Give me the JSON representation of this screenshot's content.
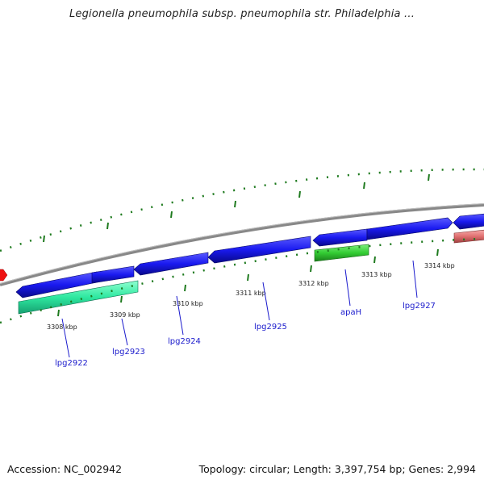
{
  "title": "Legionella pneumophila subsp. pneumophila str. Philadelphia ...",
  "footer": {
    "accession": "Accession: NC_002942",
    "summary": "Topology: circular; Length: 3,397,754 bp; Genes: 2,994"
  },
  "colors": {
    "backbone": "#8a8a8a",
    "cds": "#1a1af0",
    "cds_dark": "#0a0a9a",
    "rna_green": "#33cc33",
    "rna_cyan": "#2ee8a0",
    "pseudo_pink": "#e07070",
    "marker_red": "#ee1111",
    "tick_green": "#1e7a1e",
    "label_blue": "#1a1acc"
  },
  "ticks": [
    {
      "label": "3308 kbp"
    },
    {
      "label": "3309 kbp"
    },
    {
      "label": "3310 kbp"
    },
    {
      "label": "3311 kbp"
    },
    {
      "label": "3312 kbp"
    },
    {
      "label": "3313 kbp"
    },
    {
      "label": "3314 kbp"
    }
  ],
  "genes": [
    {
      "name": "lpg2922"
    },
    {
      "name": "lpg2923"
    },
    {
      "name": "lpg2924"
    },
    {
      "name": "lpg2925"
    },
    {
      "name": "apaH"
    },
    {
      "name": "lpg2927"
    }
  ]
}
